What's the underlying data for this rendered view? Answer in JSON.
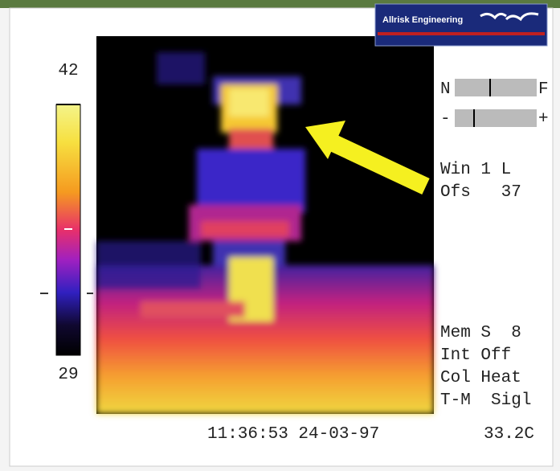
{
  "logo": {
    "text": "Allrisk Engineering"
  },
  "scale": {
    "max": "42",
    "min": "29"
  },
  "sliders": [
    {
      "left": "N",
      "right": "F"
    },
    {
      "left": "-",
      "right": "+"
    }
  ],
  "settings_top": [
    "Win 1 L",
    "Ofs   37"
  ],
  "settings_bottom": [
    "Mem S  8",
    "Int Off",
    "Col Heat",
    "T-M  Sigl"
  ],
  "footer": {
    "timestamp": "11:36:53 24-03-97",
    "reading": "33.2C"
  }
}
